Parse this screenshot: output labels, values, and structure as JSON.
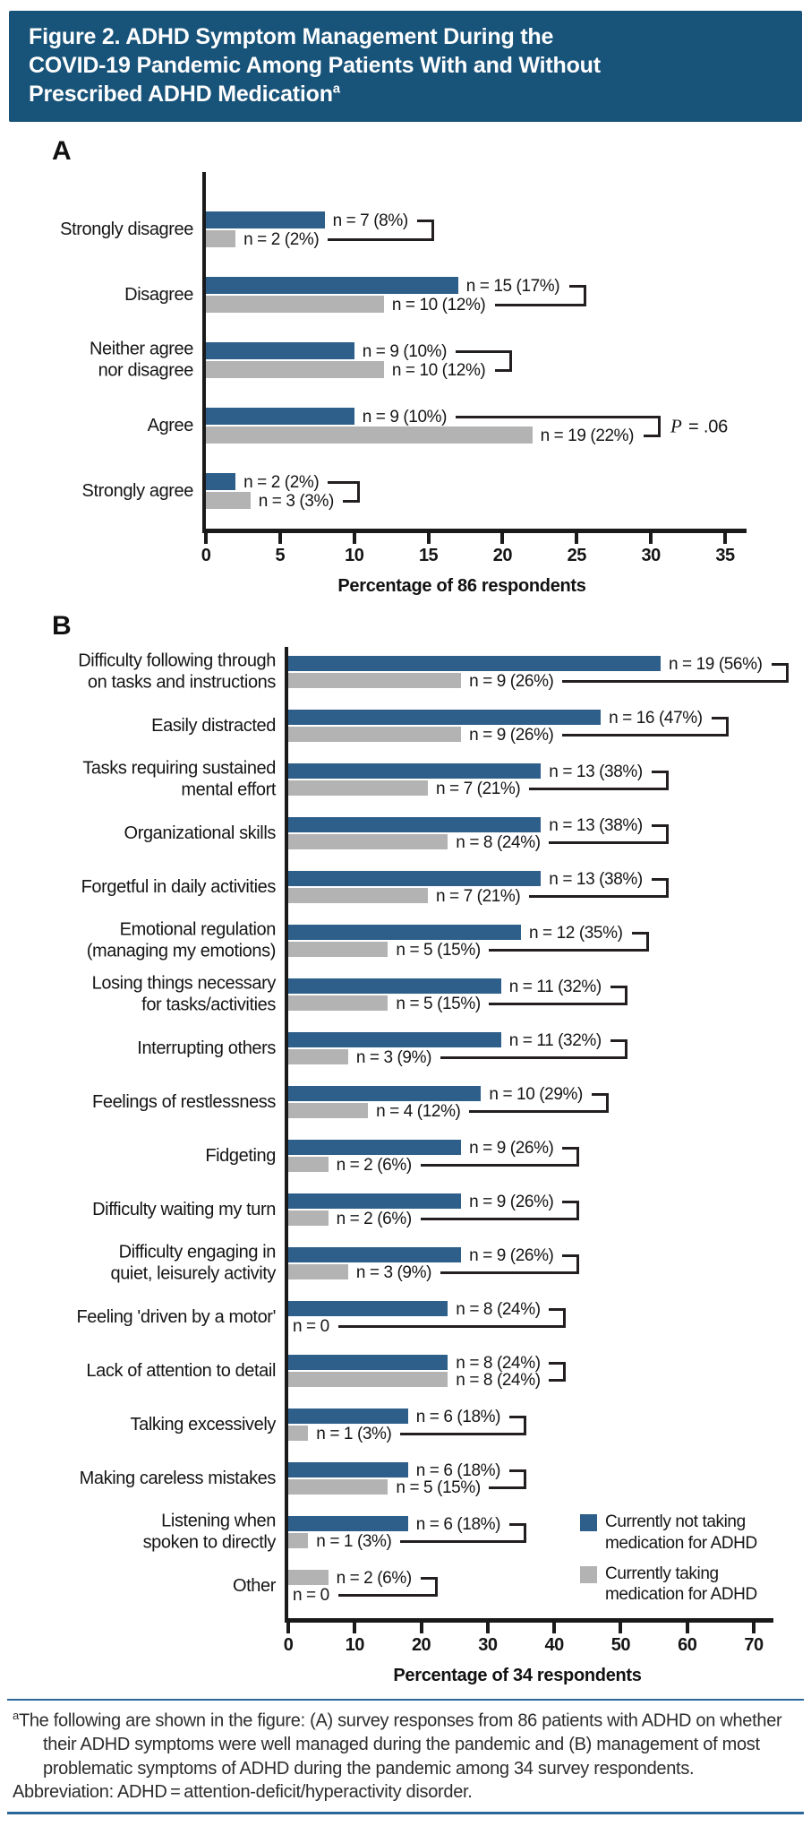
{
  "header": {
    "title_lines": [
      "Figure 2. ADHD Symptom Management During the",
      "COVID-19 Pandemic Among Patients With and Without",
      "Prescribed ADHD Medication"
    ],
    "title_superscript": "a"
  },
  "colors": {
    "header_bg": "#185379",
    "not_taking": "#2D5F8A",
    "taking": "#B3B3B3",
    "axis": "#1A1A1A",
    "rule_blue": "#2A6699"
  },
  "legend": {
    "items": [
      {
        "key": "not_taking",
        "label": "Currently not taking medication for ADHD"
      },
      {
        "key": "taking",
        "label": "Currently taking medication for ADHD"
      }
    ]
  },
  "chart_data": [
    {
      "id": "A",
      "panel_label": "A",
      "type": "bar",
      "orientation": "horizontal",
      "xlabel": "Percentage of 86 respondents",
      "xlim": [
        0,
        35
      ],
      "xticks": [
        0,
        5,
        10,
        15,
        20,
        25,
        30,
        35
      ],
      "series": [
        {
          "key": "not_taking",
          "name": "Currently not taking medication for ADHD"
        },
        {
          "key": "taking",
          "name": "Currently taking medication for ADHD"
        }
      ],
      "rows": [
        {
          "category": "Strongly disagree",
          "bars": [
            {
              "series": "not_taking",
              "n": 7,
              "pct": 8,
              "label": "n = 7 (8%)"
            },
            {
              "series": "taking",
              "n": 2,
              "pct": 2,
              "label": "n = 2 (2%)"
            }
          ]
        },
        {
          "category": "Disagree",
          "bars": [
            {
              "series": "not_taking",
              "n": 15,
              "pct": 17,
              "label": "n = 15 (17%)"
            },
            {
              "series": "taking",
              "n": 10,
              "pct": 12,
              "label": "n = 10 (12%)"
            }
          ]
        },
        {
          "category": "Neither agree\nnor disagree",
          "bars": [
            {
              "series": "not_taking",
              "n": 9,
              "pct": 10,
              "label": "n = 9 (10%)"
            },
            {
              "series": "taking",
              "n": 10,
              "pct": 12,
              "label": "n = 10 (12%)"
            }
          ]
        },
        {
          "category": "Agree",
          "annotation": "P = .06",
          "bars": [
            {
              "series": "not_taking",
              "n": 9,
              "pct": 10,
              "label": "n = 9 (10%)"
            },
            {
              "series": "taking",
              "n": 19,
              "pct": 22,
              "label": "n = 19 (22%)"
            }
          ]
        },
        {
          "category": "Strongly agree",
          "bars": [
            {
              "series": "not_taking",
              "n": 2,
              "pct": 2,
              "label": "n = 2 (2%)"
            },
            {
              "series": "taking",
              "n": 3,
              "pct": 3,
              "label": "n = 3 (3%)"
            }
          ]
        }
      ]
    },
    {
      "id": "B",
      "panel_label": "B",
      "type": "bar",
      "orientation": "horizontal",
      "xlabel": "Percentage of 34 respondents",
      "xlim": [
        0,
        70
      ],
      "xticks": [
        0,
        10,
        20,
        30,
        40,
        50,
        60,
        70
      ],
      "series": [
        {
          "key": "not_taking",
          "name": "Currently not taking medication for ADHD"
        },
        {
          "key": "taking",
          "name": "Currently taking medication for ADHD"
        }
      ],
      "legend_position": "lower right",
      "rows": [
        {
          "category": "Difficulty following through\non tasks and instructions",
          "bars": [
            {
              "series": "not_taking",
              "n": 19,
              "pct": 56,
              "label": "n = 19 (56%)"
            },
            {
              "series": "taking",
              "n": 9,
              "pct": 26,
              "label": "n = 9 (26%)"
            }
          ]
        },
        {
          "category": "Easily distracted",
          "bars": [
            {
              "series": "not_taking",
              "n": 16,
              "pct": 47,
              "label": "n = 16 (47%)"
            },
            {
              "series": "taking",
              "n": 9,
              "pct": 26,
              "label": "n = 9 (26%)"
            }
          ]
        },
        {
          "category": "Tasks requiring sustained\nmental effort",
          "bars": [
            {
              "series": "not_taking",
              "n": 13,
              "pct": 38,
              "label": "n = 13 (38%)"
            },
            {
              "series": "taking",
              "n": 7,
              "pct": 21,
              "label": "n = 7 (21%)"
            }
          ]
        },
        {
          "category": "Organizational skills",
          "bars": [
            {
              "series": "not_taking",
              "n": 13,
              "pct": 38,
              "label": "n = 13 (38%)"
            },
            {
              "series": "taking",
              "n": 8,
              "pct": 24,
              "label": "n = 8 (24%)"
            }
          ]
        },
        {
          "category": "Forgetful in daily activities",
          "bars": [
            {
              "series": "not_taking",
              "n": 13,
              "pct": 38,
              "label": "n = 13 (38%)"
            },
            {
              "series": "taking",
              "n": 7,
              "pct": 21,
              "label": "n = 7 (21%)"
            }
          ]
        },
        {
          "category": "Emotional regulation\n(managing my emotions)",
          "bars": [
            {
              "series": "not_taking",
              "n": 12,
              "pct": 35,
              "label": "n = 12 (35%)"
            },
            {
              "series": "taking",
              "n": 5,
              "pct": 15,
              "label": "n = 5 (15%)"
            }
          ]
        },
        {
          "category": "Losing things necessary\nfor tasks/activities",
          "bars": [
            {
              "series": "not_taking",
              "n": 11,
              "pct": 32,
              "label": "n = 11 (32%)"
            },
            {
              "series": "taking",
              "n": 5,
              "pct": 15,
              "label": "n = 5 (15%)"
            }
          ]
        },
        {
          "category": "Interrupting others",
          "bars": [
            {
              "series": "not_taking",
              "n": 11,
              "pct": 32,
              "label": "n = 11 (32%)"
            },
            {
              "series": "taking",
              "n": 3,
              "pct": 9,
              "label": "n = 3 (9%)"
            }
          ]
        },
        {
          "category": "Feelings of restlessness",
          "bars": [
            {
              "series": "not_taking",
              "n": 10,
              "pct": 29,
              "label": "n = 10 (29%)"
            },
            {
              "series": "taking",
              "n": 4,
              "pct": 12,
              "label": "n = 4 (12%)"
            }
          ]
        },
        {
          "category": "Fidgeting",
          "bars": [
            {
              "series": "not_taking",
              "n": 9,
              "pct": 26,
              "label": "n = 9 (26%)"
            },
            {
              "series": "taking",
              "n": 2,
              "pct": 6,
              "label": "n = 2 (6%)"
            }
          ]
        },
        {
          "category": "Difficulty waiting my turn",
          "bars": [
            {
              "series": "not_taking",
              "n": 9,
              "pct": 26,
              "label": "n = 9 (26%)"
            },
            {
              "series": "taking",
              "n": 2,
              "pct": 6,
              "label": "n = 2 (6%)"
            }
          ]
        },
        {
          "category": "Difficulty engaging in\nquiet, leisurely activity",
          "bars": [
            {
              "series": "not_taking",
              "n": 9,
              "pct": 26,
              "label": "n = 9 (26%)"
            },
            {
              "series": "taking",
              "n": 3,
              "pct": 9,
              "label": "n = 3 (9%)"
            }
          ]
        },
        {
          "category": "Feeling 'driven by a motor'",
          "bars": [
            {
              "series": "not_taking",
              "n": 8,
              "pct": 24,
              "label": "n = 8 (24%)"
            },
            {
              "series": "taking",
              "n": 0,
              "pct": 0,
              "label": "n = 0"
            }
          ]
        },
        {
          "category": "Lack of attention to detail",
          "bars": [
            {
              "series": "not_taking",
              "n": 8,
              "pct": 24,
              "label": "n = 8 (24%)"
            },
            {
              "series": "taking",
              "n": 8,
              "pct": 24,
              "label": "n = 8 (24%)"
            }
          ]
        },
        {
          "category": "Talking excessively",
          "bars": [
            {
              "series": "not_taking",
              "n": 6,
              "pct": 18,
              "label": "n = 6 (18%)"
            },
            {
              "series": "taking",
              "n": 1,
              "pct": 3,
              "label": "n = 1 (3%)"
            }
          ]
        },
        {
          "category": "Making careless mistakes",
          "bars": [
            {
              "series": "not_taking",
              "n": 6,
              "pct": 18,
              "label": "n = 6 (18%)"
            },
            {
              "series": "taking",
              "n": 5,
              "pct": 15,
              "label": "n = 5 (15%)"
            }
          ]
        },
        {
          "category": "Listening when\nspoken to directly",
          "bars": [
            {
              "series": "not_taking",
              "n": 6,
              "pct": 18,
              "label": "n = 6 (18%)"
            },
            {
              "series": "taking",
              "n": 1,
              "pct": 3,
              "label": "n = 1 (3%)"
            }
          ]
        },
        {
          "category": "Other",
          "bars": [
            {
              "series": "taking",
              "n": 2,
              "pct": 6,
              "label": "n = 2 (6%)"
            },
            {
              "series": "not_taking",
              "n": 0,
              "pct": 0,
              "label": "n = 0"
            }
          ]
        }
      ]
    }
  ],
  "footnote": {
    "superscript": "a",
    "text": "The following are shown in the figure: (A) survey responses from 86 patients with ADHD on whether their ADHD symptoms were well managed during the pandemic and (B) management of most problematic symptoms of ADHD during the pandemic among 34 survey respondents.",
    "abbreviation_line": "Abbreviation: ADHD = attention-deficit/hyperactivity disorder."
  }
}
